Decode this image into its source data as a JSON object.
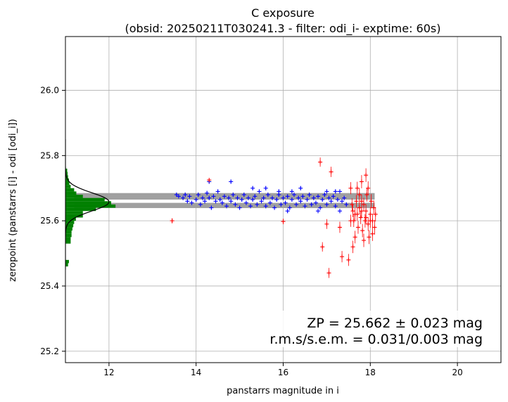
{
  "chart_data": {
    "type": "scatter",
    "title": "C exposure",
    "subtitle": "(obsid: 20250211T030241.3 - filter: odi_i- exptime: 60s)",
    "xlabel": "panstarrs magnitude in i",
    "ylabel": "zeropoint (panstarrs [i] - odi [odi_i])",
    "xlim": [
      11,
      21
    ],
    "ylim": [
      25.165,
      26.165
    ],
    "xticks": [
      "12",
      "14",
      "16",
      "18",
      "20"
    ],
    "yticks": [
      "25.2",
      "25.4",
      "25.6",
      "25.8",
      "26.0"
    ],
    "grid": true,
    "annotation": {
      "zp_line": "ZP = 25.662 ± 0.023 mag",
      "rms_line": "r.m.s/s.e.m. = 0.031/0.003 mag"
    },
    "zeropoint": 25.662,
    "zp_band": [
      25.639,
      25.685
    ],
    "zp_band_color": "#a0a0a0",
    "band_gap": [
      25.655,
      25.665
    ],
    "histogram": {
      "color": "#008000",
      "bin_width_mag": 0.01,
      "bins": [
        {
          "y": 25.47,
          "count": 0.08
        },
        {
          "y": 25.46,
          "count": 0.06
        },
        {
          "y": 25.53,
          "count": 0.12
        },
        {
          "y": 25.54,
          "count": 0.12
        },
        {
          "y": 25.55,
          "count": 0.14
        },
        {
          "y": 25.56,
          "count": 0.14
        },
        {
          "y": 25.57,
          "count": 0.16
        },
        {
          "y": 25.58,
          "count": 0.18
        },
        {
          "y": 25.59,
          "count": 0.2
        },
        {
          "y": 25.6,
          "count": 0.24
        },
        {
          "y": 25.61,
          "count": 0.4
        },
        {
          "y": 25.62,
          "count": 0.4
        },
        {
          "y": 25.63,
          "count": 0.7
        },
        {
          "y": 25.64,
          "count": 1.15
        },
        {
          "y": 25.65,
          "count": 1.05
        },
        {
          "y": 25.66,
          "count": 0.9
        },
        {
          "y": 25.67,
          "count": 0.4
        },
        {
          "y": 25.68,
          "count": 0.25
        },
        {
          "y": 25.69,
          "count": 0.2
        },
        {
          "y": 25.7,
          "count": 0.12
        },
        {
          "y": 25.71,
          "count": 0.09
        },
        {
          "y": 25.72,
          "count": 0.08
        },
        {
          "y": 25.73,
          "count": 0.06
        },
        {
          "y": 25.74,
          "count": 0.05
        },
        {
          "y": 25.75,
          "count": 0.04
        }
      ],
      "gauss_mu": 25.658,
      "gauss_sigma": 0.028,
      "gauss_peak": 1.0
    },
    "series": [
      {
        "color": "#0000ff",
        "marker": "+",
        "points": [
          [
            13.55,
            25.68
          ],
          [
            13.6,
            25.675
          ],
          [
            13.7,
            25.67
          ],
          [
            13.75,
            25.68
          ],
          [
            13.8,
            25.66
          ],
          [
            13.85,
            25.675
          ],
          [
            13.9,
            25.655
          ],
          [
            14.0,
            25.665
          ],
          [
            14.05,
            25.68
          ],
          [
            14.1,
            25.65
          ],
          [
            14.15,
            25.67
          ],
          [
            14.2,
            25.66
          ],
          [
            14.25,
            25.685
          ],
          [
            14.3,
            25.67
          ],
          [
            14.35,
            25.64
          ],
          [
            14.4,
            25.675
          ],
          [
            14.45,
            25.66
          ],
          [
            14.5,
            25.69
          ],
          [
            14.55,
            25.665
          ],
          [
            14.6,
            25.655
          ],
          [
            14.65,
            25.675
          ],
          [
            14.7,
            25.645
          ],
          [
            14.75,
            25.67
          ],
          [
            14.8,
            25.66
          ],
          [
            14.85,
            25.68
          ],
          [
            14.9,
            25.65
          ],
          [
            14.95,
            25.67
          ],
          [
            15.0,
            25.64
          ],
          [
            15.05,
            25.665
          ],
          [
            15.1,
            25.68
          ],
          [
            15.15,
            25.655
          ],
          [
            15.2,
            25.67
          ],
          [
            15.25,
            25.645
          ],
          [
            15.3,
            25.665
          ],
          [
            15.35,
            25.675
          ],
          [
            15.4,
            25.65
          ],
          [
            15.45,
            25.69
          ],
          [
            15.5,
            25.66
          ],
          [
            15.55,
            25.67
          ],
          [
            15.6,
            25.645
          ],
          [
            15.65,
            25.68
          ],
          [
            15.7,
            25.655
          ],
          [
            15.75,
            25.67
          ],
          [
            15.8,
            25.64
          ],
          [
            15.85,
            25.665
          ],
          [
            15.9,
            25.68
          ],
          [
            15.95,
            25.65
          ],
          [
            16.0,
            25.67
          ],
          [
            16.05,
            25.655
          ],
          [
            16.1,
            25.675
          ],
          [
            16.15,
            25.64
          ],
          [
            16.2,
            25.665
          ],
          [
            16.25,
            25.68
          ],
          [
            16.3,
            25.65
          ],
          [
            16.35,
            25.67
          ],
          [
            16.4,
            25.66
          ],
          [
            16.45,
            25.675
          ],
          [
            16.5,
            25.645
          ],
          [
            16.55,
            25.665
          ],
          [
            16.6,
            25.68
          ],
          [
            16.65,
            25.65
          ],
          [
            16.7,
            25.67
          ],
          [
            16.75,
            25.655
          ],
          [
            16.8,
            25.675
          ],
          [
            16.85,
            25.64
          ],
          [
            16.9,
            25.665
          ],
          [
            16.95,
            25.68
          ],
          [
            17.0,
            25.65
          ],
          [
            17.05,
            25.67
          ],
          [
            17.1,
            25.66
          ],
          [
            17.15,
            25.675
          ],
          [
            17.2,
            25.645
          ],
          [
            17.25,
            25.665
          ],
          [
            17.3,
            25.69
          ],
          [
            17.35,
            25.66
          ],
          [
            17.4,
            25.67
          ],
          [
            17.45,
            25.65
          ],
          [
            14.8,
            25.72
          ],
          [
            15.3,
            25.7
          ],
          [
            16.2,
            25.69
          ],
          [
            16.8,
            25.63
          ],
          [
            17.0,
            25.69
          ],
          [
            17.3,
            25.63
          ],
          [
            15.6,
            25.7
          ],
          [
            14.3,
            25.72
          ],
          [
            16.4,
            25.7
          ],
          [
            17.2,
            25.69
          ],
          [
            16.1,
            25.63
          ],
          [
            15.9,
            25.69
          ]
        ]
      },
      {
        "color": "#ff0000",
        "marker": "+",
        "points": [
          [
            13.45,
            25.6
          ],
          [
            14.3,
            25.725
          ],
          [
            16.0,
            25.598
          ],
          [
            16.9,
            25.52
          ],
          [
            16.85,
            25.78
          ],
          [
            17.05,
            25.44
          ],
          [
            17.0,
            25.59
          ],
          [
            17.1,
            25.75
          ],
          [
            17.3,
            25.58
          ],
          [
            17.35,
            25.49
          ],
          [
            17.5,
            25.48
          ],
          [
            17.55,
            25.7
          ],
          [
            17.6,
            25.63
          ],
          [
            17.62,
            25.6
          ],
          [
            17.65,
            25.55
          ],
          [
            17.68,
            25.66
          ],
          [
            17.7,
            25.62
          ],
          [
            17.72,
            25.58
          ],
          [
            17.75,
            25.64
          ],
          [
            17.78,
            25.61
          ],
          [
            17.8,
            25.72
          ],
          [
            17.82,
            25.57
          ],
          [
            17.85,
            25.65
          ],
          [
            17.88,
            25.6
          ],
          [
            17.9,
            25.63
          ],
          [
            17.92,
            25.68
          ],
          [
            17.95,
            25.59
          ],
          [
            17.97,
            25.55
          ],
          [
            18.0,
            25.62
          ],
          [
            18.02,
            25.66
          ],
          [
            18.05,
            25.6
          ],
          [
            18.08,
            25.64
          ],
          [
            18.1,
            25.58
          ],
          [
            18.12,
            25.62
          ],
          [
            17.9,
            25.74
          ],
          [
            17.85,
            25.54
          ],
          [
            17.7,
            25.7
          ],
          [
            17.6,
            25.52
          ],
          [
            17.55,
            25.6
          ],
          [
            17.8,
            25.66
          ],
          [
            18.05,
            25.56
          ],
          [
            17.95,
            25.7
          ],
          [
            17.75,
            25.68
          ],
          [
            17.65,
            25.62
          ],
          [
            17.9,
            25.61
          ],
          [
            18.0,
            25.6
          ],
          [
            17.8,
            25.63
          ],
          [
            17.58,
            25.65
          ]
        ]
      }
    ],
    "background": "#ffffff"
  }
}
